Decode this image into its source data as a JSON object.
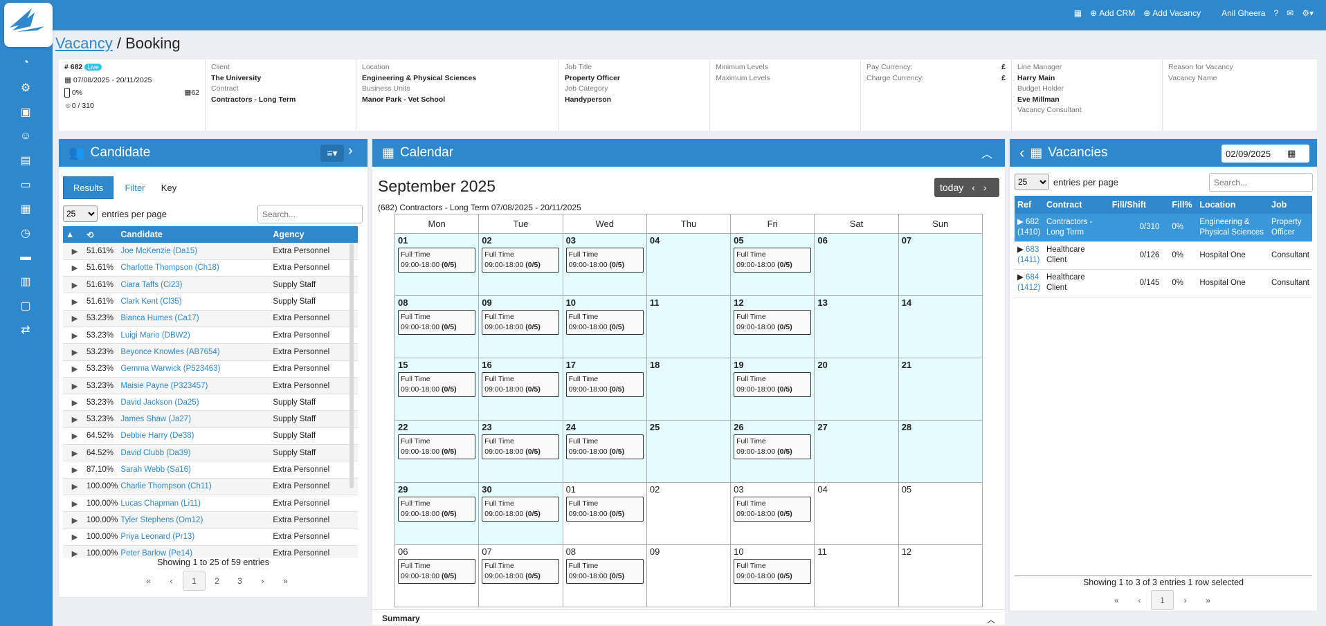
{
  "topnav": {
    "add_crm": "Add CRM",
    "add_vacancy": "Add Vacancy",
    "user": "Anil Gheera"
  },
  "breadcrumb": {
    "parent": "Vacancy",
    "sep": " / ",
    "current": "Booking"
  },
  "summary": {
    "ref": "# 682",
    "status": "Live",
    "dates": "07/08/2025 - 20/11/2025",
    "fill_pct": "0%",
    "count": "62",
    "fill": "0 / 310"
  },
  "info_cols": [
    [
      {
        "label": "Client",
        "value": "The University"
      },
      {
        "label": "Contract",
        "value": "Contractors - Long Term"
      }
    ],
    [
      {
        "label": "Location",
        "value": "Engineering & Physical Sciences"
      },
      {
        "label": "Business Units",
        "value": "Manor Park - Vet School"
      }
    ],
    [
      {
        "label": "Job Title",
        "value": "Property Officer"
      },
      {
        "label": "Job Category",
        "value": "Handyperson"
      }
    ],
    [
      {
        "label": "Minimum Levels",
        "value": ""
      },
      {
        "label": "Maximum Levels",
        "value": ""
      }
    ],
    [
      {
        "label": "Pay Currency:",
        "value": "£"
      },
      {
        "label": "Charge Currency:",
        "value": "£"
      }
    ],
    [
      {
        "label": "Line Manager",
        "value": "Harry Main"
      },
      {
        "label": "Budget Holder",
        "value": "Eve Millman"
      },
      {
        "label": "Vacancy Consultant",
        "value": ""
      }
    ],
    [
      {
        "label": "Reason for Vacancy",
        "value": ""
      },
      {
        "label": "Vacancy Name",
        "value": ""
      }
    ]
  ],
  "candidate": {
    "title": "Candidate",
    "tabs": [
      "Results",
      "Filter",
      "Key"
    ],
    "entries": "25",
    "entries_label": "entries per page",
    "search_placeholder": "Search...",
    "headers": [
      "",
      "",
      "Candidate",
      "Agency"
    ],
    "rows": [
      [
        "51.61%",
        "Joe McKenzie (Da15)",
        "Extra Personnel"
      ],
      [
        "51.61%",
        "Charlotte Thompson (Ch18)",
        "Extra Personnel"
      ],
      [
        "51.61%",
        "Ciara Taffs (Ci23)",
        "Supply Staff"
      ],
      [
        "51.61%",
        "Clark Kent (Cl35)",
        "Supply Staff"
      ],
      [
        "53.23%",
        "Bianca Humes (Ca17)",
        "Extra Personnel"
      ],
      [
        "53.23%",
        "Luigi Mario (DBW2)",
        "Extra Personnel"
      ],
      [
        "53.23%",
        "Beyonce Knowles (AB7654)",
        "Extra Personnel"
      ],
      [
        "53.23%",
        "Gemma Warwick (P523463)",
        "Extra Personnel"
      ],
      [
        "53.23%",
        "Maisie Payne (P323457)",
        "Extra Personnel"
      ],
      [
        "53.23%",
        "David Jackson (Da25)",
        "Supply Staff"
      ],
      [
        "53.23%",
        "James Shaw (Ja27)",
        "Supply Staff"
      ],
      [
        "64.52%",
        "Debbie Harry (De38)",
        "Supply Staff"
      ],
      [
        "64.52%",
        "David Clubb (Da39)",
        "Supply Staff"
      ],
      [
        "87.10%",
        "Sarah Webb (Sa16)",
        "Extra Personnel"
      ],
      [
        "100.00%",
        "Charlie Thompson (Ch11)",
        "Extra Personnel"
      ],
      [
        "100.00%",
        "Lucas Chapman (Li11)",
        "Extra Personnel"
      ],
      [
        "100.00%",
        "Tyler Stephens (Om12)",
        "Extra Personnel"
      ],
      [
        "100.00%",
        "Priya Leonard (Pr13)",
        "Extra Personnel"
      ],
      [
        "100.00%",
        "Peter Barlow (Pe14)",
        "Extra Personnel"
      ]
    ],
    "showing": "Showing 1 to 25 of 59 entries",
    "pages": [
      "«",
      "‹",
      "1",
      "2",
      "3",
      "›",
      "»"
    ]
  },
  "calendar": {
    "title": "Calendar",
    "month": "September 2025",
    "today": "today",
    "subtitle": "(682) Contractors - Long Term 07/08/2025 - 20/11/2025",
    "days": [
      "Mon",
      "Tue",
      "Wed",
      "Thu",
      "Fri",
      "Sat",
      "Sun"
    ],
    "event_label": "Full Time",
    "event_time": "09:00-18:00",
    "event_fill": "(0/5)",
    "weeks": [
      [
        [
          "01",
          1,
          1
        ],
        [
          "02",
          1,
          1
        ],
        [
          "03",
          1,
          1
        ],
        [
          "04",
          1,
          0
        ],
        [
          "05",
          1,
          1
        ],
        [
          "06",
          1,
          0
        ],
        [
          "07",
          1,
          0
        ]
      ],
      [
        [
          "08",
          1,
          1
        ],
        [
          "09",
          1,
          1
        ],
        [
          "10",
          1,
          1
        ],
        [
          "11",
          1,
          0
        ],
        [
          "12",
          1,
          1
        ],
        [
          "13",
          1,
          0
        ],
        [
          "14",
          1,
          0
        ]
      ],
      [
        [
          "15",
          1,
          1
        ],
        [
          "16",
          1,
          1
        ],
        [
          "17",
          1,
          1
        ],
        [
          "18",
          1,
          0
        ],
        [
          "19",
          1,
          1
        ],
        [
          "20",
          1,
          0
        ],
        [
          "21",
          1,
          0
        ]
      ],
      [
        [
          "22",
          1,
          1
        ],
        [
          "23",
          1,
          1
        ],
        [
          "24",
          1,
          1
        ],
        [
          "25",
          1,
          0
        ],
        [
          "26",
          1,
          1
        ],
        [
          "27",
          1,
          0
        ],
        [
          "28",
          1,
          0
        ]
      ],
      [
        [
          "29",
          1,
          1
        ],
        [
          "30",
          1,
          1
        ],
        [
          "01",
          0,
          1
        ],
        [
          "02",
          0,
          0
        ],
        [
          "03",
          0,
          1
        ],
        [
          "04",
          0,
          0
        ],
        [
          "05",
          0,
          0
        ]
      ],
      [
        [
          "06",
          0,
          1
        ],
        [
          "07",
          0,
          1
        ],
        [
          "08",
          0,
          1
        ],
        [
          "09",
          0,
          0
        ],
        [
          "10",
          0,
          1
        ],
        [
          "11",
          0,
          0
        ],
        [
          "12",
          0,
          0
        ]
      ]
    ],
    "summary_label": "Summary"
  },
  "vacancies": {
    "title": "Vacancies",
    "date": "02/09/2025",
    "entries": "25",
    "entries_label": "entries per page",
    "search_placeholder": "Search...",
    "headers": [
      "Ref",
      "Contract",
      "Fill/Shift",
      "Fill%",
      "Location",
      "Job"
    ],
    "rows": [
      [
        "682",
        "(1410)",
        "Contractors - Long Term",
        "0/310",
        "0%",
        "Engineering & Physical Sciences",
        "Property Officer"
      ],
      [
        "683",
        "(1411)",
        "Healthcare Client",
        "0/126",
        "0%",
        "Hospital One",
        "Consultant"
      ],
      [
        "684",
        "(1412)",
        "Healthcare Client",
        "0/145",
        "0%",
        "Hospital One",
        "Consultant"
      ]
    ],
    "showing": "Showing 1 to 3 of 3 entries 1 row selected",
    "pages": [
      "«",
      "‹",
      "1",
      "›",
      "»"
    ]
  }
}
